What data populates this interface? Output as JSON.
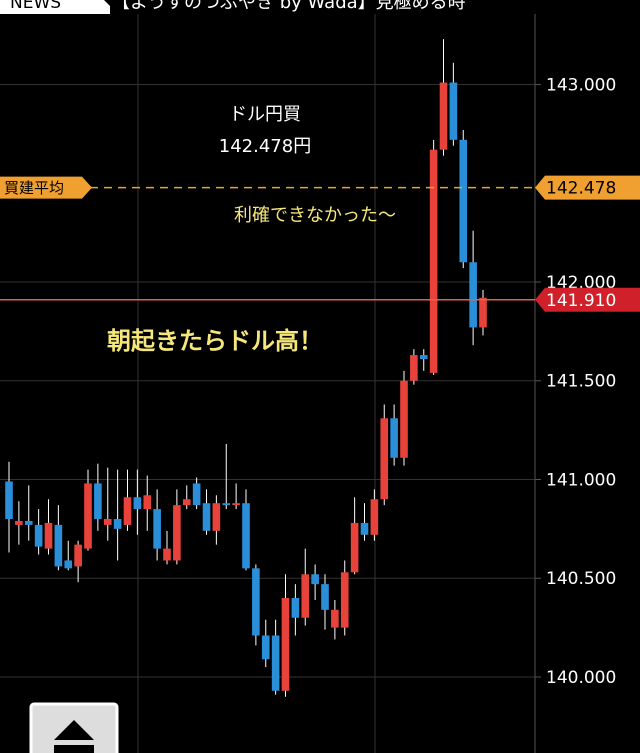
{
  "header": {
    "tab": "NEWS",
    "headline": "【ようすのつぶやき by Wada】見極める時"
  },
  "chart_data": {
    "type": "candlestick",
    "up_color": "#e8433a",
    "down_color": "#2a8fd8",
    "open": [
      140.99,
      140.77,
      140.79,
      140.77,
      140.65,
      140.77,
      140.59,
      140.56,
      140.65,
      140.98,
      140.77,
      140.8,
      140.77,
      140.91,
      140.85,
      140.85,
      140.59,
      140.59,
      140.87,
      140.98,
      140.88,
      140.74,
      140.88,
      140.87,
      140.88,
      140.55,
      140.21,
      140.21,
      139.93,
      140.4,
      140.3,
      140.52,
      140.47,
      140.25,
      140.25,
      140.53,
      140.78,
      140.72,
      140.9,
      141.31,
      141.11,
      141.5,
      141.63,
      141.54,
      142.67,
      143.01,
      142.72,
      142.1,
      141.77
    ],
    "high": [
      141.09,
      140.89,
      140.97,
      140.85,
      140.9,
      140.87,
      140.69,
      140.69,
      141.05,
      141.08,
      141.06,
      141.05,
      141.05,
      141.05,
      141.02,
      140.95,
      140.74,
      140.95,
      140.97,
      141.01,
      140.95,
      140.92,
      141.18,
      140.98,
      140.95,
      140.57,
      140.29,
      140.29,
      140.52,
      140.47,
      140.65,
      140.57,
      140.52,
      140.39,
      140.59,
      140.91,
      140.88,
      140.95,
      141.38,
      141.38,
      141.55,
      141.66,
      141.66,
      142.72,
      143.23,
      143.11,
      142.77,
      142.26,
      141.96
    ],
    "low": [
      140.63,
      140.67,
      140.69,
      140.62,
      140.62,
      140.54,
      140.54,
      140.48,
      140.64,
      140.74,
      140.69,
      140.59,
      140.74,
      140.72,
      140.74,
      140.59,
      140.57,
      140.57,
      140.85,
      140.85,
      140.72,
      140.67,
      140.85,
      140.85,
      140.54,
      140.16,
      140.05,
      139.91,
      139.9,
      140.21,
      140.26,
      140.39,
      140.24,
      140.19,
      140.21,
      140.52,
      140.69,
      140.69,
      140.87,
      141.07,
      141.07,
      141.48,
      141.55,
      141.53,
      142.64,
      142.69,
      142.07,
      141.68,
      141.73
    ],
    "close": [
      140.8,
      140.79,
      140.77,
      140.66,
      140.78,
      140.56,
      140.55,
      140.67,
      140.98,
      140.8,
      140.8,
      140.75,
      140.91,
      140.85,
      140.92,
      140.65,
      140.65,
      140.87,
      140.9,
      140.87,
      140.74,
      140.88,
      140.87,
      140.88,
      140.55,
      140.21,
      140.09,
      139.93,
      140.4,
      140.3,
      140.52,
      140.47,
      140.34,
      140.34,
      140.53,
      140.78,
      140.72,
      140.9,
      141.31,
      141.11,
      141.5,
      141.63,
      141.61,
      142.67,
      143.01,
      142.72,
      142.1,
      141.77,
      141.92
    ],
    "ylim": [
      139.615,
      143.428
    ],
    "yticks": [
      {
        "value": 140,
        "label": "140.000"
      },
      {
        "value": 140.5,
        "label": "140.500"
      },
      {
        "value": 141,
        "label": "141.000"
      },
      {
        "value": 141.5,
        "label": "141.500"
      },
      {
        "value": 142,
        "label": "142.000"
      },
      {
        "value": 143,
        "label": "143.000"
      }
    ],
    "grid": true,
    "avg_line": {
      "name": "買建平均",
      "value": 142.478,
      "color": "#f0a030"
    },
    "price_line": {
      "value": 141.91,
      "label": "141.910",
      "color": "#e0604f"
    },
    "annotations": [
      "ドル円買",
      "142.478円",
      "利確できなかった～",
      "朝起きたらドル高！"
    ]
  }
}
